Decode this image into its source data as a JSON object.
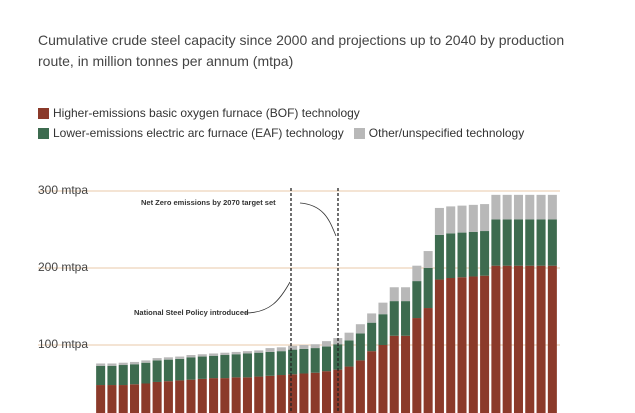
{
  "chart_data": {
    "type": "stacked_bar",
    "subtitle": "Cumulative crude steel capacity since 2000 and projections up to 2040 by production route, in million tonnes per annum (mtpa)",
    "categories": [
      null,
      null,
      null,
      null,
      null,
      null,
      null,
      null,
      null,
      null,
      null,
      null,
      null,
      null,
      null,
      null,
      null,
      null,
      null,
      null,
      null,
      null,
      null,
      null,
      null,
      null,
      null,
      null,
      null,
      null,
      null,
      null,
      null,
      null,
      null,
      null,
      null,
      null,
      null,
      null,
      null
    ],
    "series": [
      {
        "name": "Higher-emissions basic oxygen furnace (BOF) technology",
        "color": "#8b3a2a",
        "values": [
          48,
          48,
          48,
          49,
          50,
          52,
          53,
          54,
          55,
          56,
          57,
          57,
          58,
          58,
          59,
          60,
          61,
          62,
          63,
          64,
          66,
          68,
          72,
          80,
          92,
          100,
          112,
          112,
          135,
          148,
          185,
          187,
          188,
          189,
          190,
          203,
          203,
          203,
          203,
          203,
          203
        ]
      },
      {
        "name": "Lower-emissions electric arc furnace (EAF) technology",
        "color": "#3d6b4f",
        "values": [
          25,
          25,
          26,
          26,
          27,
          28,
          28,
          28,
          29,
          29,
          29,
          30,
          30,
          31,
          31,
          31,
          31,
          32,
          32,
          32,
          32,
          33,
          34,
          35,
          37,
          40,
          45,
          45,
          48,
          52,
          58,
          58,
          58,
          58,
          58,
          60,
          60,
          60,
          60,
          60,
          60
        ]
      },
      {
        "name": "Other/unspecified technology",
        "color": "#b8b8b8",
        "values": [
          3,
          3,
          3,
          3,
          3,
          3,
          3,
          3,
          3,
          3,
          3,
          3,
          3,
          3,
          3,
          5,
          5,
          5,
          5,
          5,
          7,
          8,
          10,
          12,
          12,
          15,
          18,
          18,
          20,
          22,
          35,
          35,
          35,
          35,
          35,
          32,
          32,
          32,
          32,
          32,
          32
        ]
      }
    ],
    "ylim": [
      0,
      300
    ],
    "yticks": [
      {
        "value": 100,
        "label": "100 mtpa"
      },
      {
        "value": 200,
        "label": "200 mtpa"
      },
      {
        "value": 300,
        "label": "300 mtpa"
      }
    ],
    "grid": true,
    "annotations": [
      "Net Zero emissions by 2070 target set",
      "National Steel Policy introduced"
    ]
  }
}
